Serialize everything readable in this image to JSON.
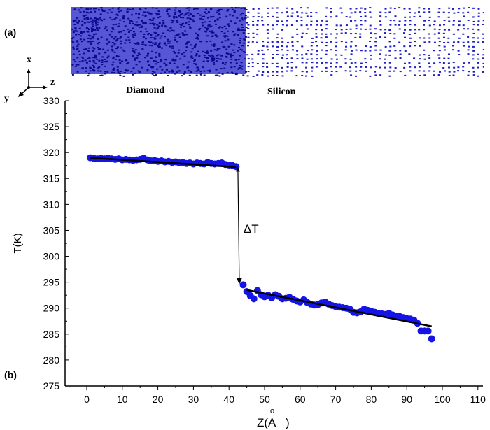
{
  "panel_a": {
    "label": "(a)",
    "axes": {
      "x": "x",
      "y": "y",
      "z": "z"
    },
    "regions": [
      "Diamond",
      "Silicon"
    ],
    "colors": {
      "atoms": "#1f1fc8"
    }
  },
  "panel_b": {
    "label": "(b)"
  },
  "chart_data": {
    "type": "scatter",
    "title": "",
    "xlabel": "Z(Å)",
    "xlabel_main": "Z(A",
    "xlabel_ring": "o",
    "xlabel_close": ")",
    "ylabel": "T(K)",
    "xlim": [
      -5,
      110
    ],
    "ylim": [
      275,
      330
    ],
    "xticks": [
      "0",
      "10",
      "20",
      "30",
      "40",
      "50",
      "60",
      "70",
      "80",
      "90",
      "100",
      "110"
    ],
    "yticks": [
      "275",
      "280",
      "285",
      "290",
      "295",
      "300",
      "305",
      "310",
      "315",
      "320",
      "325",
      "330"
    ],
    "annotation": "ΔT",
    "marker_color": "#1414e6",
    "series": [
      {
        "name": "Diamond",
        "x": [
          1,
          2,
          3,
          4,
          5,
          6,
          7,
          8,
          9,
          10,
          11,
          12,
          13,
          14,
          15,
          16,
          17,
          18,
          19,
          20,
          21,
          22,
          23,
          24,
          25,
          26,
          27,
          28,
          29,
          30,
          31,
          32,
          33,
          34,
          35,
          36,
          37,
          38,
          39,
          40,
          41,
          42
        ],
        "y": [
          319.0,
          318.9,
          318.8,
          318.9,
          318.8,
          318.9,
          318.8,
          318.7,
          318.8,
          318.6,
          318.7,
          318.6,
          318.5,
          318.6,
          318.7,
          318.9,
          318.6,
          318.4,
          318.5,
          318.3,
          318.4,
          318.2,
          318.3,
          318.1,
          318.2,
          318.0,
          318.1,
          317.9,
          318.0,
          317.8,
          318.0,
          317.9,
          317.8,
          318.1,
          317.9,
          317.8,
          317.9,
          318.0,
          317.7,
          317.6,
          317.5,
          317.3
        ]
      },
      {
        "name": "Silicon",
        "x": [
          44,
          45,
          46,
          47,
          48,
          49,
          50,
          51,
          52,
          53,
          54,
          55,
          56,
          57,
          58,
          59,
          60,
          61,
          62,
          63,
          64,
          65,
          66,
          67,
          68,
          69,
          70,
          71,
          72,
          73,
          74,
          75,
          76,
          77,
          78,
          79,
          80,
          81,
          82,
          83,
          84,
          85,
          86,
          87,
          88,
          89,
          90,
          91,
          92,
          93,
          94,
          95,
          96,
          97
        ],
        "y": [
          294.5,
          293.2,
          292.4,
          291.8,
          293.4,
          292.6,
          292.2,
          292.5,
          292.0,
          292.6,
          292.3,
          291.8,
          291.9,
          292.1,
          291.7,
          291.4,
          291.2,
          291.6,
          291.1,
          290.8,
          290.6,
          290.7,
          291.0,
          291.2,
          290.8,
          290.5,
          290.3,
          290.2,
          290.1,
          290.0,
          289.8,
          289.2,
          289.1,
          289.3,
          289.8,
          289.6,
          289.4,
          289.2,
          289.0,
          288.9,
          288.8,
          289.0,
          288.7,
          288.5,
          288.4,
          288.2,
          288.0,
          287.9,
          287.7,
          287.1,
          285.6,
          285.6,
          285.6,
          284.1
        ]
      }
    ],
    "fits": [
      {
        "name": "Diamond fit",
        "x": [
          1,
          42
        ],
        "y": [
          319.0,
          317.2
        ]
      },
      {
        "name": "Silicon fit",
        "x": [
          45,
          97
        ],
        "y": [
          293.5,
          286.5
        ]
      }
    ],
    "delta_arrow": {
      "x": 42.5,
      "from": 317.0,
      "to": 294.6
    }
  }
}
